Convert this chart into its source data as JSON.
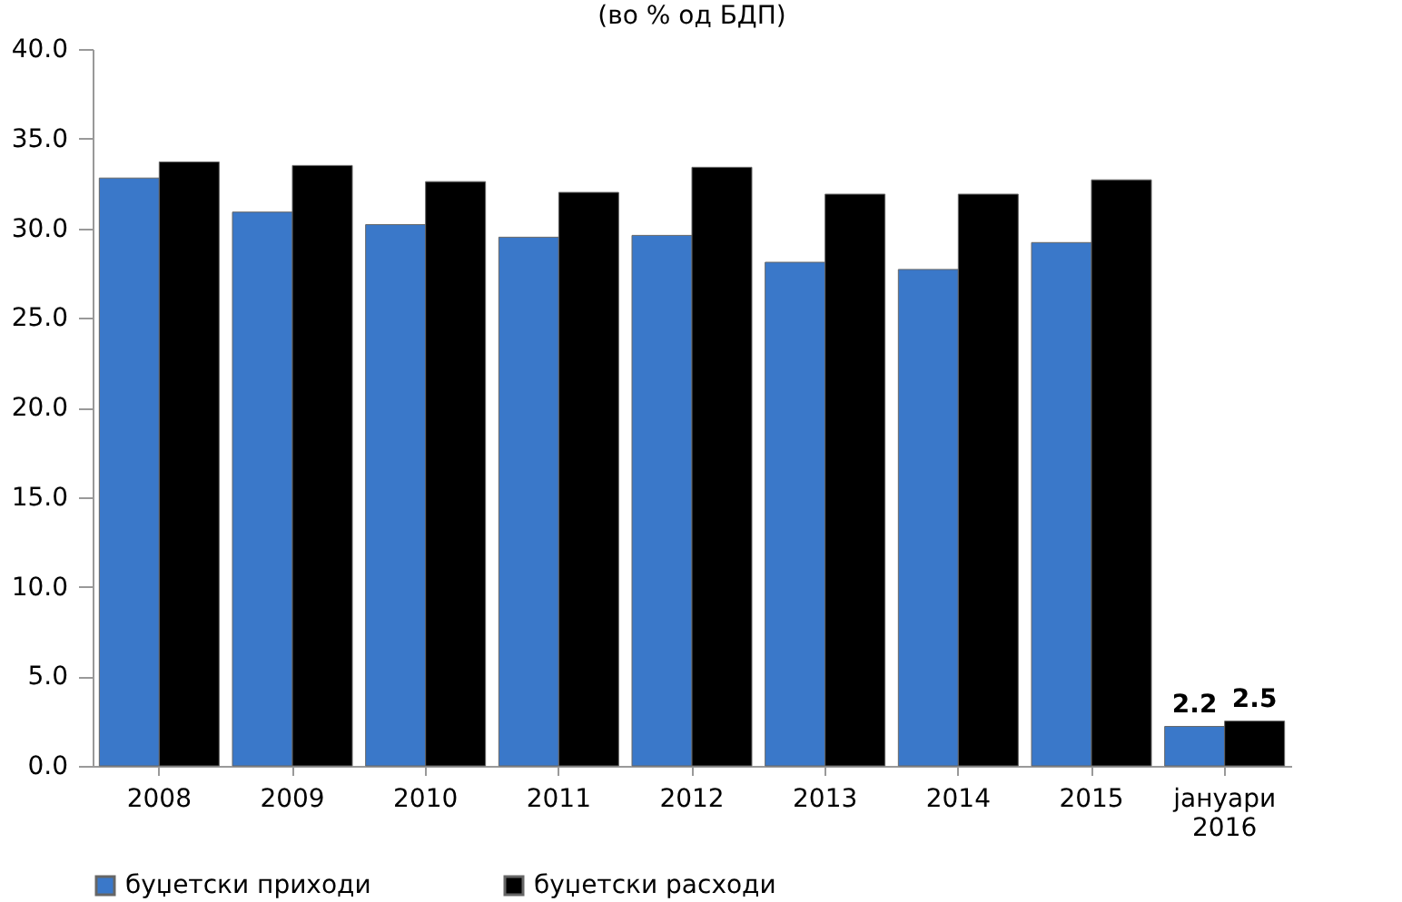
{
  "chart_data": {
    "type": "bar",
    "title": "(во % од БДП)",
    "categories": [
      "2008",
      "2009",
      "2010",
      "2011",
      "2012",
      "2013",
      "2014",
      "2015",
      "јануари 2016"
    ],
    "series": [
      {
        "name": "буџетски приходи",
        "color": "#3a78c9",
        "values": [
          32.8,
          30.9,
          30.2,
          29.5,
          29.6,
          28.1,
          27.7,
          29.2,
          2.2
        ],
        "value_labels": [
          null,
          null,
          null,
          null,
          null,
          null,
          null,
          null,
          "2.2"
        ]
      },
      {
        "name": "буџетски расходи",
        "color": "#000000",
        "values": [
          33.7,
          33.5,
          32.6,
          32.0,
          33.4,
          31.9,
          31.9,
          32.7,
          2.5
        ],
        "value_labels": [
          null,
          null,
          null,
          null,
          null,
          null,
          null,
          null,
          "2.5"
        ]
      }
    ],
    "ylim": [
      0,
      40
    ],
    "yticks": [
      {
        "value": 0,
        "label": "0.0"
      },
      {
        "value": 5,
        "label": "5.0"
      },
      {
        "value": 10,
        "label": "10.0"
      },
      {
        "value": 15,
        "label": "15.0"
      },
      {
        "value": 20,
        "label": "20.0"
      },
      {
        "value": 25,
        "label": "25.0"
      },
      {
        "value": 30,
        "label": "30.0"
      },
      {
        "value": 35,
        "label": "35.0"
      },
      {
        "value": 40,
        "label": "40.0"
      }
    ],
    "grid": false,
    "legend": "bottom"
  }
}
